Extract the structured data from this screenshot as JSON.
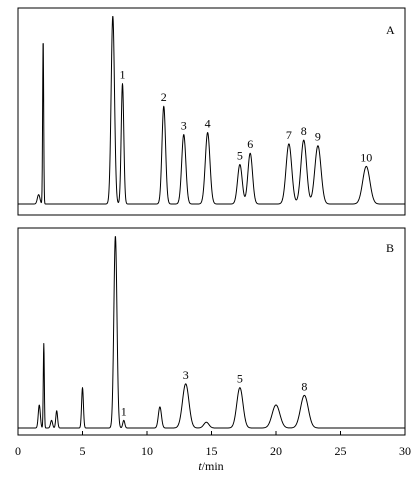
{
  "chart_data": {
    "type": "line",
    "xlabel_var": "t",
    "xlabel_unit": "/min",
    "xlim": [
      0,
      30
    ],
    "x_ticks": [
      0,
      5,
      10,
      15,
      20,
      25,
      30
    ],
    "grid": false,
    "panels": [
      {
        "panel_label": "A",
        "peaks": [
          {
            "x": 1.6,
            "height": 0.05,
            "width": 0.1,
            "label": ""
          },
          {
            "x": 1.95,
            "height": 0.88,
            "width": 0.04,
            "label": ""
          },
          {
            "x": 7.35,
            "height": 1.0,
            "width": 0.13,
            "label": ""
          },
          {
            "x": 8.1,
            "height": 0.64,
            "width": 0.1,
            "label": "1"
          },
          {
            "x": 11.3,
            "height": 0.52,
            "width": 0.14,
            "label": "2"
          },
          {
            "x": 12.85,
            "height": 0.37,
            "width": 0.16,
            "label": "3"
          },
          {
            "x": 14.7,
            "height": 0.38,
            "width": 0.18,
            "label": "4"
          },
          {
            "x": 17.2,
            "height": 0.21,
            "width": 0.18,
            "label": "5"
          },
          {
            "x": 18.0,
            "height": 0.27,
            "width": 0.18,
            "label": "6"
          },
          {
            "x": 21.0,
            "height": 0.32,
            "width": 0.22,
            "label": "7"
          },
          {
            "x": 22.15,
            "height": 0.34,
            "width": 0.22,
            "label": "8"
          },
          {
            "x": 23.25,
            "height": 0.31,
            "width": 0.24,
            "label": "9"
          },
          {
            "x": 27.0,
            "height": 0.2,
            "width": 0.28,
            "label": "10"
          }
        ]
      },
      {
        "panel_label": "B",
        "peaks": [
          {
            "x": 1.65,
            "height": 0.12,
            "width": 0.08,
            "label": ""
          },
          {
            "x": 2.0,
            "height": 0.44,
            "width": 0.04,
            "label": ""
          },
          {
            "x": 2.6,
            "height": 0.04,
            "width": 0.08,
            "label": ""
          },
          {
            "x": 3.0,
            "height": 0.09,
            "width": 0.07,
            "label": ""
          },
          {
            "x": 5.0,
            "height": 0.21,
            "width": 0.07,
            "label": ""
          },
          {
            "x": 7.55,
            "height": 1.0,
            "width": 0.12,
            "label": ""
          },
          {
            "x": 8.2,
            "height": 0.04,
            "width": 0.08,
            "label": "1"
          },
          {
            "x": 11.0,
            "height": 0.11,
            "width": 0.12,
            "label": ""
          },
          {
            "x": 13.0,
            "height": 0.23,
            "width": 0.25,
            "label": "3"
          },
          {
            "x": 14.6,
            "height": 0.03,
            "width": 0.2,
            "label": ""
          },
          {
            "x": 17.2,
            "height": 0.21,
            "width": 0.24,
            "label": "5"
          },
          {
            "x": 20.0,
            "height": 0.12,
            "width": 0.3,
            "label": ""
          },
          {
            "x": 22.2,
            "height": 0.17,
            "width": 0.3,
            "label": "8"
          }
        ]
      }
    ]
  }
}
